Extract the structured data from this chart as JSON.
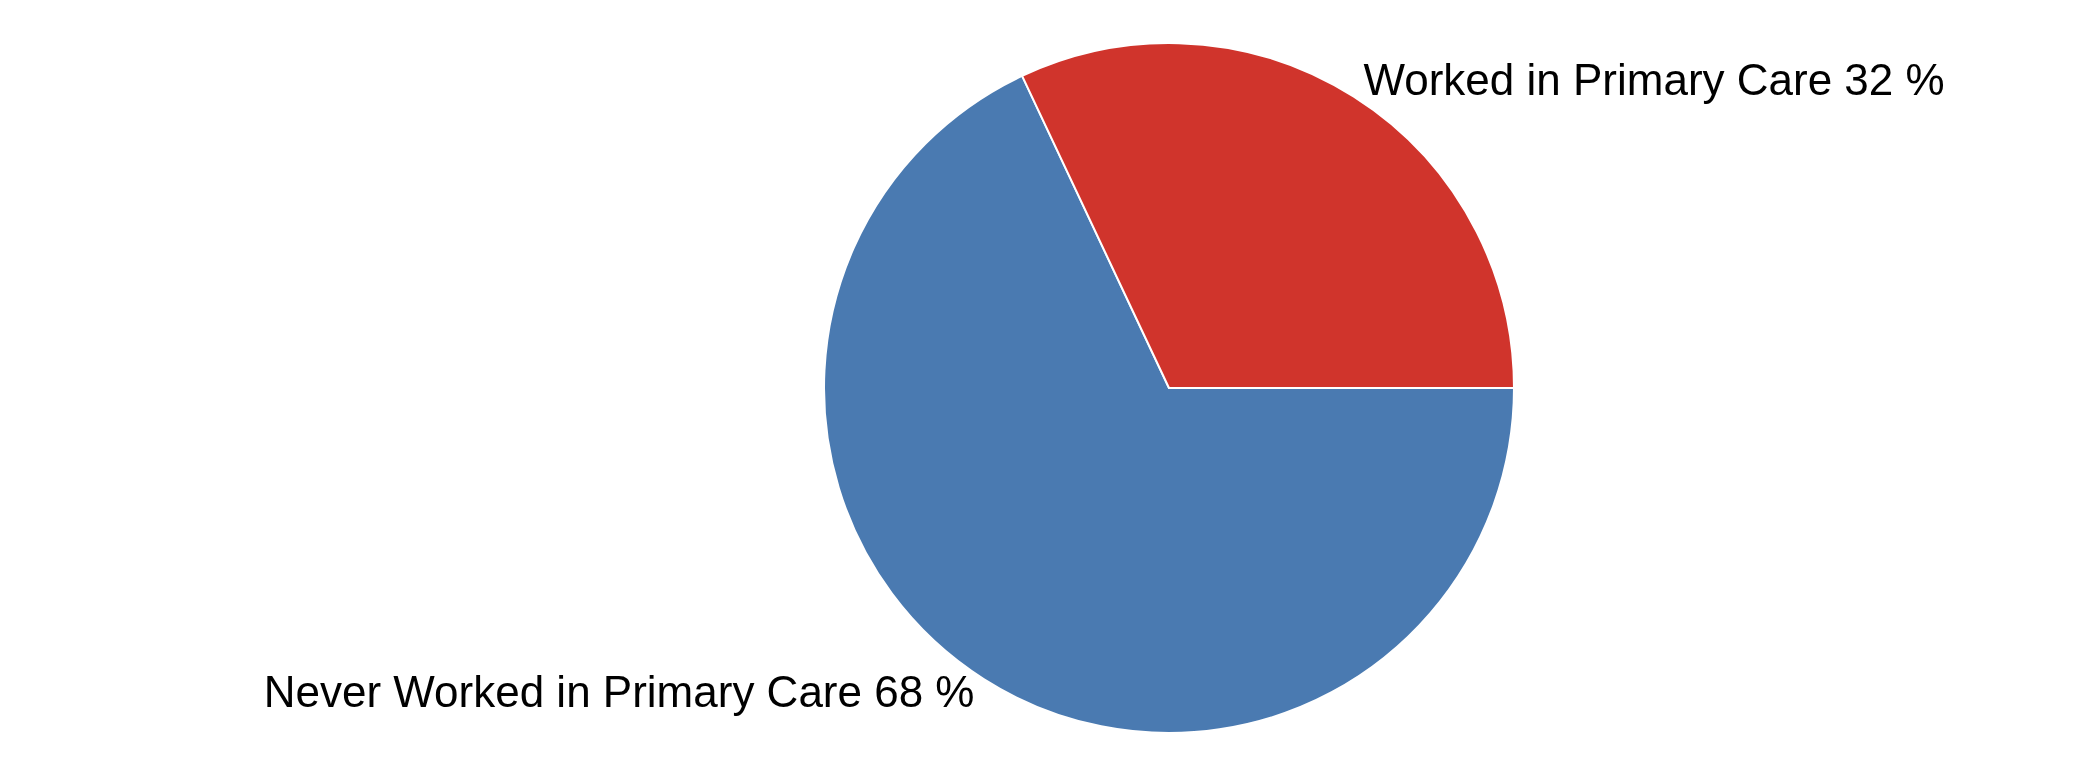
{
  "chart_data": {
    "type": "pie",
    "categories": [
      "Never Worked in Primary Care",
      "Worked in Primary Care"
    ],
    "values": [
      68,
      32
    ],
    "value_labels": [
      "68 %",
      "32 %"
    ],
    "colors": [
      "#4a7ab1",
      "#d0342c"
    ]
  }
}
